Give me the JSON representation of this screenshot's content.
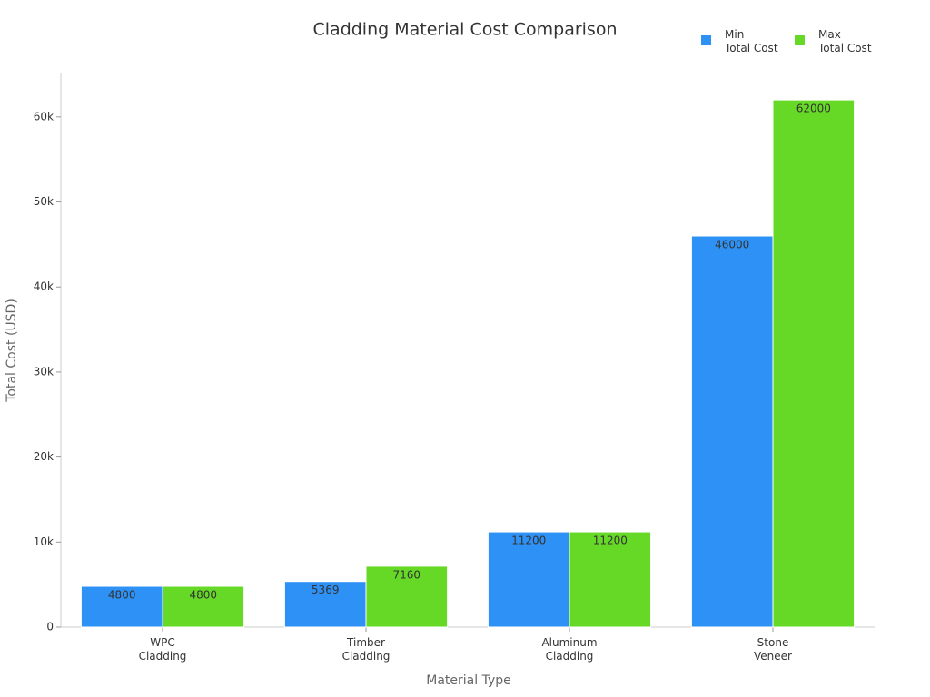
{
  "chart_data": {
    "type": "bar",
    "title": "Cladding Material Cost Comparison",
    "x_label": "Material Type",
    "y_label": "Total Cost (USD)",
    "categories": [
      "WPC\nCladding",
      "Timber\nCladding",
      "Aluminum\nCladding",
      "Stone\nVeneer"
    ],
    "series": [
      {
        "name": "Min\nTotal Cost",
        "color": "#2e91f5",
        "values": [
          4800,
          5369,
          11200,
          46000
        ]
      },
      {
        "name": "Max\nTotal Cost",
        "color": "#66d926",
        "values": [
          4800,
          7160,
          11200,
          62000
        ]
      }
    ],
    "ylim": [
      0,
      65000
    ],
    "yticks": [
      0,
      {
        "value": 10000,
        "label": "10k"
      },
      {
        "value": 20000,
        "label": "20k"
      },
      {
        "value": 30000,
        "label": "30k"
      },
      {
        "value": 40000,
        "label": "40k"
      },
      {
        "value": 50000,
        "label": "50k"
      },
      {
        "value": 60000,
        "label": "60k"
      }
    ],
    "grid": false,
    "legend": "top-right"
  }
}
